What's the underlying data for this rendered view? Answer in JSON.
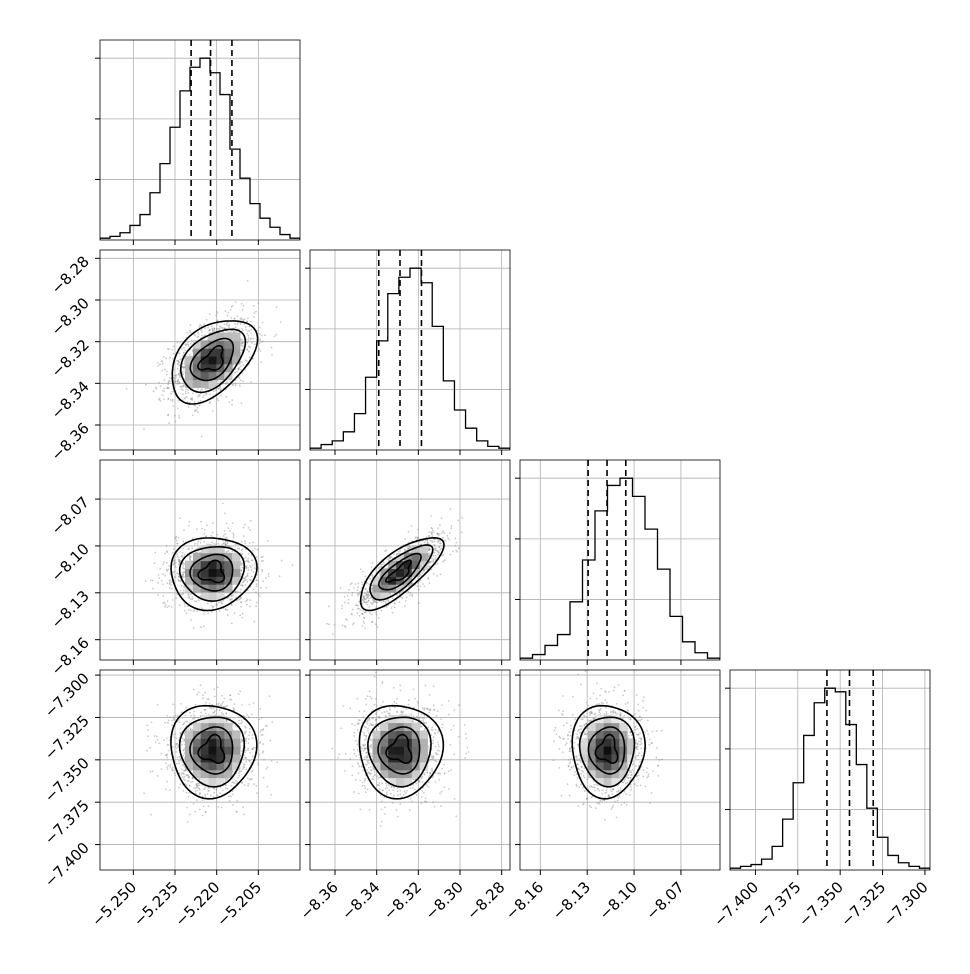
{
  "chart_data": {
    "type": "corner",
    "grid": true,
    "parameters": [
      {
        "range": [
          -5.262,
          -5.19
        ],
        "ticks": [
          -5.25,
          -5.235,
          -5.22,
          -5.205
        ],
        "tick_labels": [
          "−5.250",
          "−5.235",
          "−5.220",
          "−5.205"
        ],
        "quantiles": [
          -5.2292,
          -5.2222,
          -5.2145
        ],
        "hist_counts": [
          1,
          2,
          4,
          8,
          14,
          26,
          42,
          62,
          82,
          95,
          100,
          92,
          80,
          50,
          34,
          20,
          12,
          7,
          3,
          1
        ],
        "mean": -5.2215,
        "sd": 0.0073
      },
      {
        "range": [
          -8.372,
          -8.276
        ],
        "ticks": [
          -8.36,
          -8.34,
          -8.32,
          -8.3,
          -8.28
        ],
        "tick_labels": [
          "−8.36",
          "−8.34",
          "−8.32",
          "−8.30",
          "−8.28"
        ],
        "quantiles": [
          -8.339,
          -8.3288,
          -8.3185
        ],
        "hist_counts": [
          1,
          3,
          5,
          10,
          20,
          40,
          60,
          86,
          95,
          100,
          92,
          68,
          38,
          22,
          12,
          5,
          2,
          1
        ],
        "mean": -8.3288,
        "sd": 0.0095
      },
      {
        "range": [
          -8.173,
          -8.045
        ],
        "ticks": [
          -8.16,
          -8.13,
          -8.1,
          -8.07
        ],
        "tick_labels": [
          "−8.16",
          "−8.13",
          "−8.10",
          "−8.07"
        ],
        "quantiles": [
          -8.1294,
          -8.1173,
          -8.1053
        ],
        "hist_counts": [
          1,
          3,
          8,
          14,
          32,
          55,
          82,
          96,
          100,
          90,
          72,
          50,
          24,
          10,
          4,
          1
        ],
        "mean": -8.117,
        "sd": 0.011
      },
      {
        "range": [
          -7.415,
          -7.297
        ],
        "ticks": [
          -7.4,
          -7.375,
          -7.35,
          -7.325,
          -7.3
        ],
        "tick_labels": [
          "−7.400",
          "−7.375",
          "−7.350",
          "−7.325",
          "−7.300"
        ],
        "quantiles": [
          -7.3578,
          -7.3445,
          -7.3305
        ],
        "hist_counts": [
          1,
          2,
          3,
          6,
          13,
          28,
          48,
          74,
          92,
          100,
          98,
          80,
          58,
          34,
          18,
          8,
          4,
          2,
          1
        ],
        "mean": -7.3443,
        "sd": 0.013
      }
    ],
    "correlations": [
      [
        1,
        0.45,
        0.05,
        0.0
      ],
      [
        0.45,
        1,
        0.75,
        0.0
      ],
      [
        0.05,
        0.75,
        1,
        0.0
      ],
      [
        0.0,
        0.0,
        0.0,
        1
      ]
    ]
  }
}
